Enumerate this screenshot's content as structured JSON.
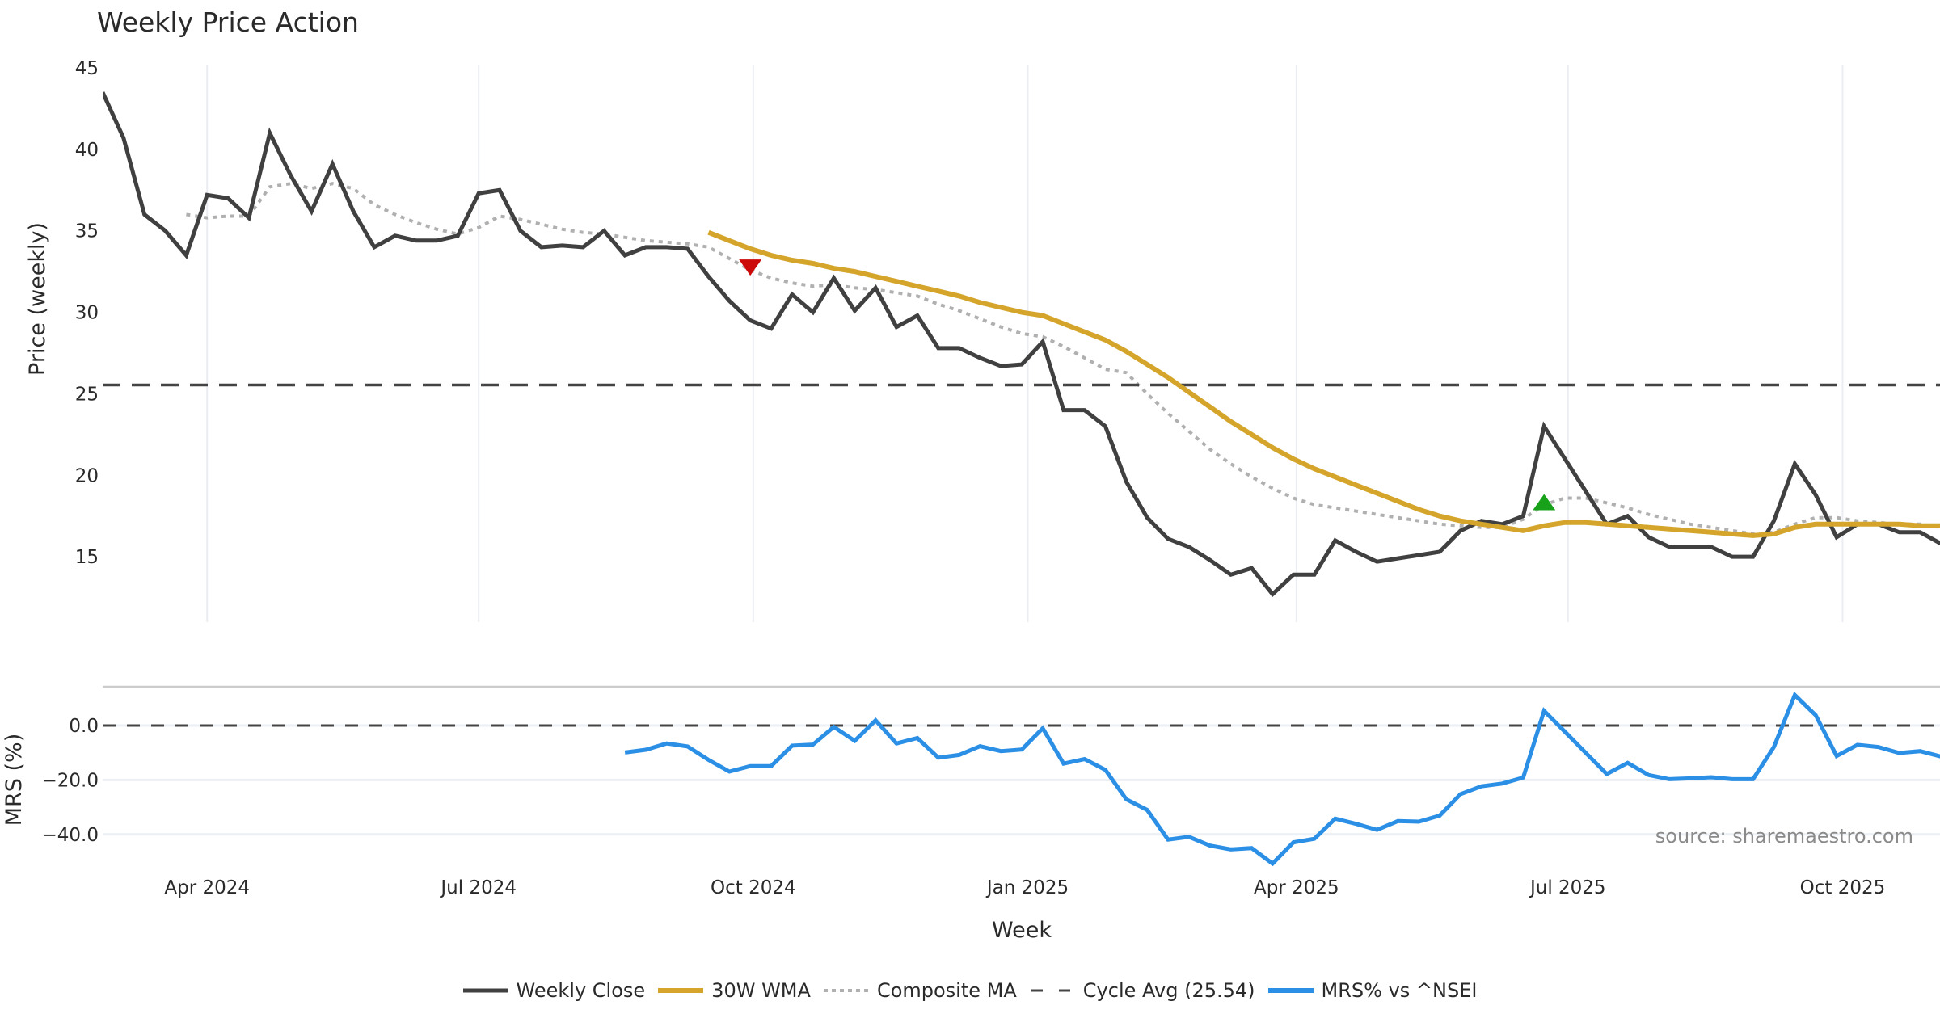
{
  "chart_data": [
    {
      "type": "line",
      "title": "Weekly Price Action",
      "xlabel": "Week",
      "ylabel": "Price (weekly)",
      "ylim": [
        11,
        45.3
      ],
      "yticks": [
        15,
        20,
        25,
        30,
        35,
        40,
        45
      ],
      "ytick_labels": [
        "15",
        "20",
        "25",
        "30",
        "35",
        "40",
        "45"
      ],
      "grid": "vertical",
      "x_start_week": "2024-02-26",
      "series": [
        {
          "name": "Weekly Close",
          "color": "#404040",
          "style": "solid",
          "start_index": 0,
          "values": [
            43.5,
            40.7,
            36.0,
            35.0,
            33.5,
            37.2,
            37.0,
            35.8,
            41.0,
            38.4,
            36.2,
            39.1,
            36.2,
            34.0,
            34.7,
            34.4,
            34.4,
            34.7,
            37.3,
            37.5,
            35.0,
            34.0,
            34.1,
            34.0,
            35.0,
            33.5,
            34.0,
            34.0,
            33.9,
            32.2,
            30.7,
            29.5,
            29.0,
            31.1,
            30.0,
            32.1,
            30.1,
            31.5,
            29.1,
            29.8,
            27.8,
            27.8,
            27.2,
            26.7,
            26.8,
            28.2,
            24.0,
            24.0,
            23.0,
            19.6,
            17.4,
            16.1,
            15.6,
            14.8,
            13.9,
            14.3,
            12.7,
            13.9,
            13.9,
            16.0,
            15.3,
            14.7,
            14.9,
            15.1,
            15.3,
            16.6,
            17.2,
            17.0,
            17.5,
            23.0,
            21.0,
            19.0,
            17.0,
            17.5,
            16.2,
            15.6,
            15.6,
            15.6,
            15.0,
            15.0,
            17.2,
            20.7,
            18.8,
            16.2,
            17.0,
            17.0,
            16.5,
            16.5,
            15.8
          ]
        },
        {
          "name": "30W WMA",
          "color": "#d4a52a",
          "style": "solid",
          "start_index": 29,
          "values": [
            34.9,
            34.4,
            33.9,
            33.5,
            33.2,
            33.0,
            32.7,
            32.5,
            32.2,
            31.9,
            31.6,
            31.3,
            31.0,
            30.6,
            30.3,
            30.0,
            29.8,
            29.3,
            28.8,
            28.3,
            27.6,
            26.8,
            26.0,
            25.1,
            24.2,
            23.3,
            22.5,
            21.7,
            21.0,
            20.4,
            19.9,
            19.4,
            18.9,
            18.4,
            17.9,
            17.5,
            17.2,
            17.0,
            16.8,
            16.6,
            16.9,
            17.1,
            17.1,
            17.0,
            16.9,
            16.8,
            16.7,
            16.6,
            16.5,
            16.4,
            16.3,
            16.4,
            16.8,
            17.0,
            17.0,
            17.0,
            17.0,
            17.0,
            16.9,
            16.9
          ]
        },
        {
          "name": "Composite MA",
          "color": "#b0b0b0",
          "style": "dotted",
          "start_index": 4,
          "values": [
            36.0,
            35.8,
            35.9,
            35.9,
            37.7,
            37.9,
            37.6,
            37.9,
            37.6,
            36.6,
            36.0,
            35.5,
            35.1,
            34.8,
            35.2,
            35.9,
            35.7,
            35.4,
            35.1,
            34.9,
            34.8,
            34.6,
            34.4,
            34.3,
            34.2,
            34.0,
            33.3,
            32.6,
            32.1,
            31.8,
            31.6,
            31.7,
            31.5,
            31.4,
            31.2,
            31.0,
            30.5,
            30.1,
            29.6,
            29.1,
            28.7,
            28.5,
            27.9,
            27.2,
            26.5,
            26.3,
            25.0,
            23.8,
            22.7,
            21.6,
            20.7,
            19.9,
            19.2,
            18.6,
            18.2,
            18.0,
            17.8,
            17.6,
            17.4,
            17.2,
            17.0,
            16.9,
            16.8,
            16.8,
            17.3,
            18.2,
            18.6,
            18.6,
            18.3,
            18.0,
            17.6,
            17.3,
            17.0,
            16.8,
            16.6,
            16.4,
            16.5,
            17.0,
            17.4,
            17.4,
            17.2,
            17.1,
            17.0,
            17.0,
            16.8
          ]
        },
        {
          "name": "Cycle Avg (25.54)",
          "color": "#444444",
          "style": "dashed",
          "constant": 25.54
        }
      ],
      "markers": [
        {
          "type": "sell",
          "shape": "triangle-down",
          "color": "#cc0a0a",
          "index": 31,
          "value": 32.8
        },
        {
          "type": "buy",
          "shape": "triangle-up",
          "color": "#17a21a",
          "index": 69,
          "value": 18.3
        }
      ]
    },
    {
      "type": "line",
      "xlabel": "Week",
      "ylabel": "MRS (%)",
      "ylim": [
        -52,
        12
      ],
      "yticks": [
        0,
        -20,
        -40
      ],
      "ytick_labels": [
        "0.0",
        "−20.0",
        "−40.0"
      ],
      "reference_line": {
        "value": 0,
        "style": "dashed",
        "color": "#444444"
      },
      "series": [
        {
          "name": "MRS% vs ^NSEI",
          "color": "#2b8fe6",
          "style": "solid",
          "start_index": 25,
          "values": [
            -9.9,
            -8.9,
            -6.6,
            -7.7,
            -12.6,
            -16.9,
            -14.9,
            -14.9,
            -7.4,
            -7.0,
            -0.5,
            -5.6,
            1.9,
            -6.6,
            -4.6,
            -11.8,
            -10.8,
            -7.6,
            -9.4,
            -8.8,
            -1.0,
            -14.0,
            -12.3,
            -16.3,
            -27.1,
            -31.0,
            -41.9,
            -40.9,
            -44.1,
            -45.5,
            -45.0,
            -50.7,
            -42.9,
            -41.6,
            -34.2,
            -36.1,
            -38.3,
            -35.1,
            -35.3,
            -33.1,
            -25.2,
            -22.3,
            -21.3,
            -19.1,
            5.4,
            -2.3,
            -10.1,
            -17.8,
            -13.7,
            -18.2,
            -19.7,
            -19.4,
            -19.0,
            -19.7,
            -19.7,
            -7.9,
            11.2,
            3.8,
            -11.2,
            -7.1,
            -7.9,
            -10.1,
            -9.4,
            -11.4
          ]
        }
      ]
    }
  ],
  "x_axis": {
    "label": "Week",
    "ticks": [
      {
        "label": "Apr 2024",
        "date": "2024-04-01"
      },
      {
        "label": "Jul 2024",
        "date": "2024-07-01"
      },
      {
        "label": "Oct 2024",
        "date": "2024-10-01"
      },
      {
        "label": "Jan 2025",
        "date": "2025-01-01"
      },
      {
        "label": "Apr 2025",
        "date": "2025-04-01"
      },
      {
        "label": "Jul 2025",
        "date": "2025-07-01"
      },
      {
        "label": "Oct 2025",
        "date": "2025-10-01"
      }
    ]
  },
  "title": "Weekly Price Action",
  "source": "source: sharemaestro.com",
  "legend": [
    {
      "label": "Weekly Close",
      "color": "#404040",
      "style": "solid"
    },
    {
      "label": "30W WMA",
      "color": "#d4a52a",
      "style": "solid"
    },
    {
      "label": "Composite MA",
      "color": "#b0b0b0",
      "style": "dotted"
    },
    {
      "label": "Cycle Avg (25.54)",
      "color": "#444444",
      "style": "dashed"
    },
    {
      "label": "MRS% vs ^NSEI",
      "color": "#2b8fe6",
      "style": "solid"
    }
  ]
}
